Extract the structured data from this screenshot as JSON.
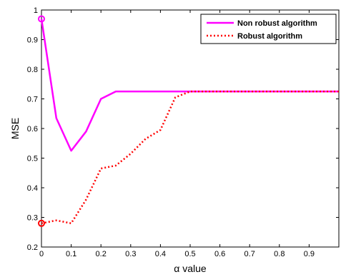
{
  "chart_data": {
    "type": "line",
    "xlabel": "α value",
    "ylabel": "MSE",
    "xlim": [
      0,
      1
    ],
    "ylim": [
      0.2,
      1
    ],
    "xticks": [
      "0",
      "0.1",
      "0.2",
      "0.3",
      "0.4",
      "0.5",
      "0.6",
      "0.7",
      "0.8",
      "0.9"
    ],
    "xtick_values": [
      0,
      0.1,
      0.2,
      0.3,
      0.4,
      0.5,
      0.6,
      0.7,
      0.8,
      0.9
    ],
    "yticks": [
      "0.2",
      "0.3",
      "0.4",
      "0.5",
      "0.6",
      "0.7",
      "0.8",
      "0.9",
      "1"
    ],
    "ytick_values": [
      0.2,
      0.3,
      0.4,
      0.5,
      0.6,
      0.7,
      0.8,
      0.9,
      1.0
    ],
    "grid": false,
    "legend_position": "top-right",
    "series": [
      {
        "name": "Non robust algorithm",
        "color": "#ff00ff",
        "style": "solid",
        "marker_first": "circle",
        "x": [
          0,
          0.05,
          0.1,
          0.15,
          0.2,
          0.25,
          0.3,
          0.35,
          0.4,
          0.45,
          0.5,
          0.55,
          0.6,
          0.65,
          0.7,
          0.75,
          0.8,
          0.85,
          0.9,
          0.95,
          1.0
        ],
        "y": [
          0.97,
          0.635,
          0.525,
          0.59,
          0.7,
          0.725,
          0.725,
          0.725,
          0.725,
          0.725,
          0.725,
          0.725,
          0.725,
          0.725,
          0.725,
          0.725,
          0.725,
          0.725,
          0.725,
          0.725,
          0.725
        ]
      },
      {
        "name": "Robust algorithm",
        "color": "#ff0000",
        "style": "dotted",
        "marker_first": "circle",
        "x": [
          0,
          0.05,
          0.1,
          0.15,
          0.2,
          0.25,
          0.3,
          0.35,
          0.4,
          0.45,
          0.5,
          0.55,
          0.6,
          0.65,
          0.7,
          0.75,
          0.8,
          0.85,
          0.9,
          0.95,
          1.0
        ],
        "y": [
          0.28,
          0.29,
          0.28,
          0.36,
          0.465,
          0.475,
          0.515,
          0.565,
          0.595,
          0.705,
          0.725,
          0.725,
          0.725,
          0.725,
          0.725,
          0.725,
          0.725,
          0.725,
          0.725,
          0.725,
          0.725
        ]
      }
    ]
  }
}
